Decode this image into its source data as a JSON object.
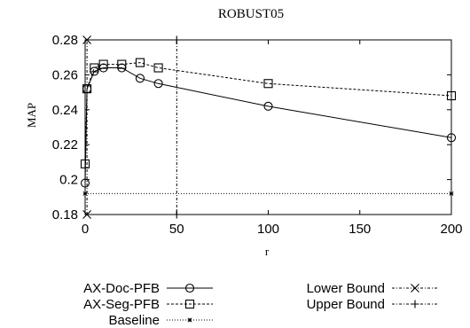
{
  "chart_data": {
    "type": "line",
    "title": "ROBUST05",
    "xlabel": "r",
    "ylabel": "MAP",
    "xlim": [
      0,
      200
    ],
    "ylim": [
      0.18,
      0.28
    ],
    "xticks": [
      0,
      50,
      100,
      150,
      200
    ],
    "yticks": [
      0.18,
      0.2,
      0.22,
      0.24,
      0.26,
      0.28
    ],
    "xtick_labels": [
      "0",
      "50",
      "100",
      "150",
      "200"
    ],
    "ytick_labels": [
      "0.18",
      "0.2",
      "0.22",
      "0.24",
      "0.26",
      "0.28"
    ],
    "grid": false,
    "legend_position": "bottom",
    "series": [
      {
        "name": "AX-Doc-PFB",
        "marker": "circle",
        "dash": "solid",
        "x": [
          0,
          1,
          5,
          10,
          20,
          30,
          40,
          100,
          200
        ],
        "y": [
          0.198,
          0.252,
          0.262,
          0.264,
          0.264,
          0.258,
          0.255,
          0.242,
          0.224
        ]
      },
      {
        "name": "AX-Seg-PFB",
        "marker": "square",
        "dash": "dashed",
        "x": [
          0,
          1,
          5,
          10,
          20,
          30,
          40,
          100,
          200
        ],
        "y": [
          0.209,
          0.252,
          0.264,
          0.266,
          0.266,
          0.267,
          0.264,
          0.255,
          0.248
        ]
      },
      {
        "name": "Baseline",
        "marker": "star",
        "dash": "dotted",
        "x": [
          0,
          200
        ],
        "y": [
          0.192,
          0.192
        ]
      },
      {
        "name": "Lower Bound",
        "marker": "x",
        "dash": "dashdot",
        "x": [
          1,
          1
        ],
        "y": [
          0.18,
          0.28
        ]
      },
      {
        "name": "Upper Bound",
        "marker": "plus",
        "dash": "dashdot",
        "x": [
          50,
          50
        ],
        "y": [
          0.18,
          0.28
        ]
      }
    ]
  }
}
